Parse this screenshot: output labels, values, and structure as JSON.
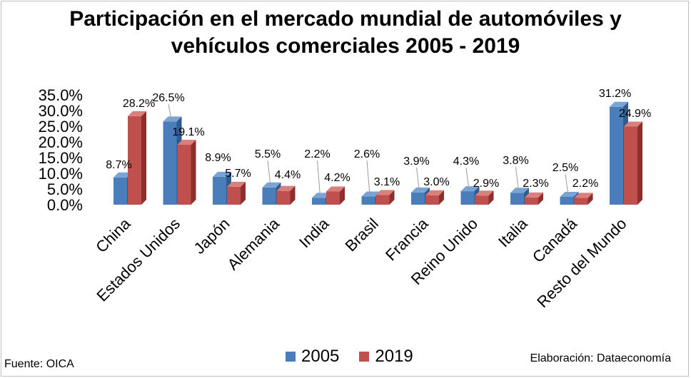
{
  "chart_data": {
    "type": "bar",
    "title": "Participación en el mercado mundial de automóviles y vehículos comerciales 2005 - 2019",
    "title_lines": [
      "Participación en el mercado mundial de automóviles y",
      "vehículos comerciales 2005 - 2019"
    ],
    "categories": [
      "China",
      "Estados Unidos",
      "Japón",
      "Alemania",
      "India",
      "Brasil",
      "Francia",
      "Reino Unido",
      "Italia",
      "Canadá",
      "Resto del Mundo"
    ],
    "series": [
      {
        "name": "2005",
        "color": "#4a7ebb",
        "side_color": "#2f5b8f",
        "top_color": "#7aa3d6",
        "values": [
          8.7,
          26.5,
          8.9,
          5.5,
          2.2,
          2.6,
          3.9,
          4.3,
          3.8,
          2.5,
          31.2
        ],
        "labels": [
          "8.7%",
          "26.5%",
          "8.9%",
          "5.5%",
          "2.2%",
          "2.6%",
          "3.9%",
          "4.3%",
          "3.8%",
          "2.5%",
          "31.2%"
        ]
      },
      {
        "name": "2019",
        "color": "#c0504d",
        "side_color": "#8c2f2d",
        "top_color": "#d9807d",
        "values": [
          28.2,
          19.1,
          5.7,
          4.4,
          4.2,
          3.1,
          3.0,
          2.9,
          2.3,
          2.2,
          24.9
        ],
        "labels": [
          "28.2%",
          "19.1%",
          "5.7%",
          "4.4%",
          "4.2%",
          "3.1%",
          "3.0%",
          "2.9%",
          "2.3%",
          "2.2%",
          "24.9%"
        ]
      }
    ],
    "ylim": [
      0,
      35
    ],
    "yticks": [
      0,
      5,
      10,
      15,
      20,
      25,
      30,
      35
    ],
    "ytick_labels": [
      "0.0%",
      "5.0%",
      "10.0%",
      "15.0%",
      "20.0%",
      "25.0%",
      "30.0%",
      "35.0%"
    ],
    "xlabel": "",
    "ylabel": "",
    "grid": false,
    "style": "3d-clustered-column",
    "legend_position": "bottom"
  },
  "footer": {
    "source": "Fuente: OICA",
    "credit": "Elaboración: Dataeconomía"
  }
}
